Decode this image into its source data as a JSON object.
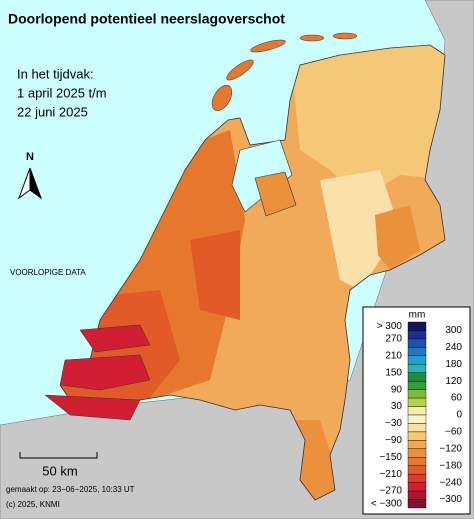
{
  "header": {
    "title": "Doorlopend potentieel neerslagoverschot"
  },
  "period": [
    "In het tijdvak:",
    "1 april 2025 t/m",
    "22 juni 2025"
  ],
  "north": "N",
  "notice": "VOORLOPIGE DATA",
  "scale": "50 km",
  "footer": [
    "gemaakt op: 23−06−2025, 10:33 UT",
    "(c) 2025, KNMI"
  ],
  "legend": {
    "unit": "mm",
    "left_labels": [
      "> 300",
      "270",
      "210",
      "150",
      "90",
      "30",
      "−30",
      "−90",
      "−150",
      "−210",
      "−270",
      "< −300"
    ],
    "right_labels": [
      "300",
      "240",
      "180",
      "120",
      "60",
      "0",
      "−60",
      "−120",
      "−180",
      "−240",
      "−300"
    ],
    "colors": [
      "#14145a",
      "#1e2d8c",
      "#2050b4",
      "#1e78c8",
      "#1ea0d2",
      "#28b4b4",
      "#1e8c3c",
      "#32a032",
      "#78be3c",
      "#b4d250",
      "#f0f0a0",
      "#fff0c8",
      "#fae1aa",
      "#f5c878",
      "#f0aa5a",
      "#eb913c",
      "#e6782d",
      "#e15a28",
      "#dc3c28",
      "#d21e32",
      "#b4142d",
      "#821428"
    ]
  }
}
